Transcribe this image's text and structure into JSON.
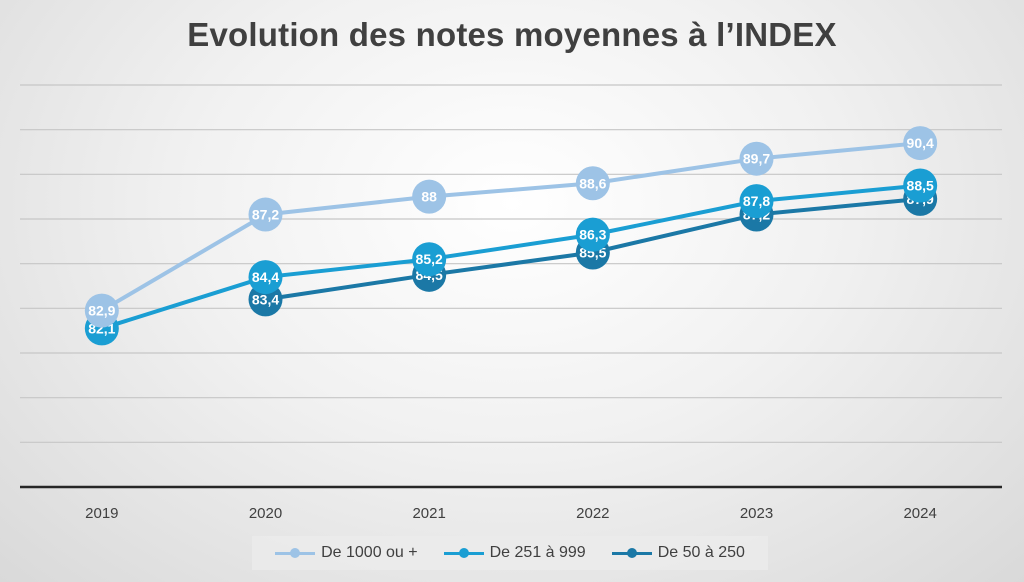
{
  "chart_data": {
    "type": "line",
    "title": "Evolution des notes moyennes à l’INDEX",
    "categories": [
      "2019",
      "2020",
      "2021",
      "2022",
      "2023",
      "2024"
    ],
    "series": [
      {
        "name": "De 1000 ou +",
        "color": "#9dc3e6",
        "values": [
          82.9,
          87.2,
          88,
          88.6,
          89.7,
          90.4
        ],
        "labels": [
          "82,9",
          "87,2",
          "88",
          "88,6",
          "89,7",
          "90,4"
        ]
      },
      {
        "name": "De 251 à 999",
        "color": "#1a9ed3",
        "values": [
          82.1,
          84.4,
          85.2,
          86.3,
          87.8,
          88.5
        ],
        "labels": [
          "82,1",
          "84,4",
          "85,2",
          "86,3",
          "87,8",
          "88,5"
        ]
      },
      {
        "name": "De 50 à 250",
        "color": "#1b78a6",
        "values": [
          null,
          83.4,
          84.5,
          85.5,
          87.2,
          87.9
        ],
        "labels": [
          "",
          "83,4",
          "84,5",
          "85,5",
          "87,2",
          "87,9"
        ]
      }
    ],
    "ylim": [
      75,
      93
    ],
    "grid": true,
    "legend": "bottom"
  }
}
